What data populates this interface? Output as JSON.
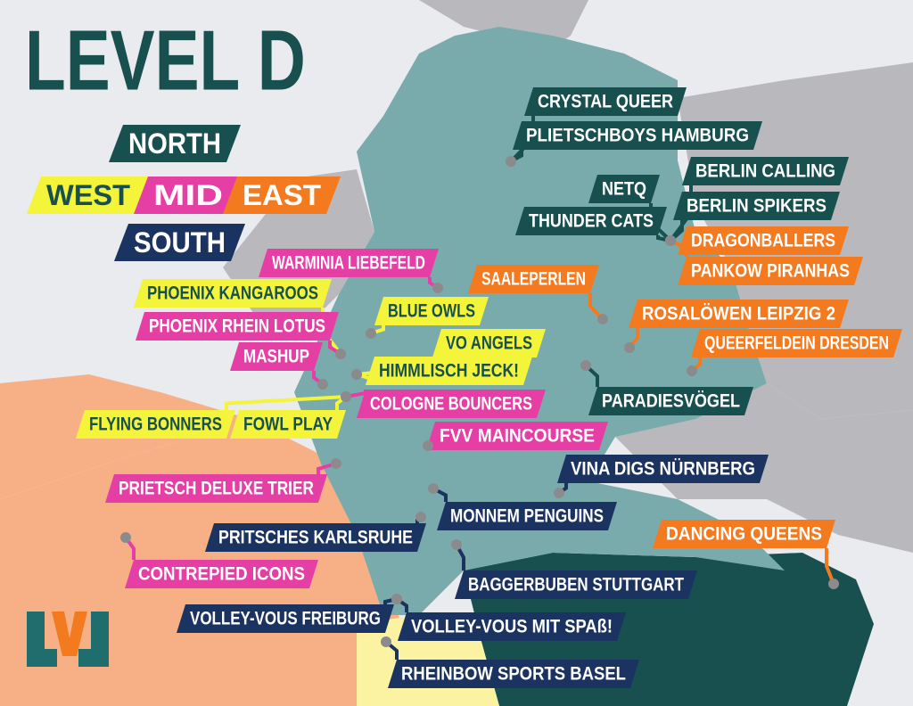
{
  "title": "LEVEL D",
  "regions": [
    {
      "name": "NORTH",
      "color": "#17504f",
      "text_color": "#ffffff",
      "teams": [
        "CRYSTAL QUEER",
        "PLIETSCHBOYS HAMBURG",
        "NETQ",
        "THUNDER CATS",
        "BERLIN CALLING",
        "BERLIN SPIKERS",
        "PARADIESVÖGEL"
      ]
    },
    {
      "name": "WEST",
      "color": "#f4f43a",
      "text_color": "#17504f",
      "teams": [
        "PHOENIX KANGAROOS",
        "BLUE OWLS",
        "VO ANGELS",
        "HIMMLISCH JECK!",
        "FLYING BONNERS",
        "FOWL PLAY"
      ]
    },
    {
      "name": "MID",
      "color": "#e53fa6",
      "text_color": "#ffffff",
      "teams": [
        "WARMINIA LIEBEFELD",
        "PHOENIX RHEIN LOTUS",
        "MASHUP",
        "COLOGNE BOUNCERS",
        "FVV MAINCOURSE",
        "PRIETSCH DELUXE TRIER",
        "CONTREPIED ICONS"
      ]
    },
    {
      "name": "EAST",
      "color": "#f47a1f",
      "text_color": "#ffffff",
      "teams": [
        "DRAGONBALLERS",
        "PANKOW PIRANHAS",
        "SAALEPERLEN",
        "ROSALÖWEN LEIPZIG 2",
        "QUEERFELDEIN DRESDEN",
        "DANCING QUEENS"
      ]
    },
    {
      "name": "SOUTH",
      "color": "#1b3360",
      "text_color": "#ffffff",
      "teams": [
        "VINA DIGS NÜRNBERG",
        "MONNEM PENGUINS",
        "PRITSCHES KARLSRUHE",
        "BAGGERBUBEN STUTTGART",
        "VOLLEY-VOUS FREIBURG",
        "VOLLEY-VOUS MIT SPAß!",
        "RHEINBOW SPORTS BASEL"
      ]
    }
  ]
}
